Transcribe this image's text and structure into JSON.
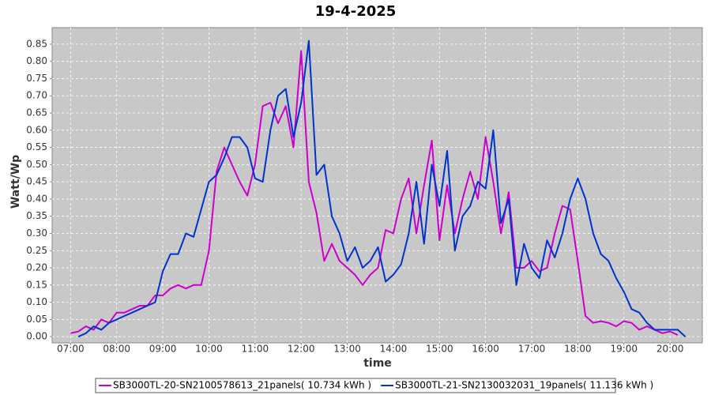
{
  "chart_data": {
    "type": "line",
    "title": "19-4-2025",
    "x_label": "time",
    "y_label": "Watt/Wp",
    "x": [
      420,
      430,
      440,
      450,
      460,
      470,
      480,
      490,
      500,
      510,
      520,
      530,
      540,
      550,
      560,
      570,
      580,
      590,
      600,
      610,
      620,
      630,
      640,
      650,
      660,
      670,
      680,
      690,
      700,
      710,
      720,
      730,
      740,
      750,
      760,
      770,
      780,
      790,
      800,
      810,
      820,
      830,
      840,
      850,
      860,
      870,
      880,
      890,
      900,
      910,
      920,
      930,
      940,
      950,
      960,
      970,
      980,
      990,
      1000,
      1010,
      1020,
      1030,
      1040,
      1050,
      1060,
      1070,
      1080,
      1090,
      1100,
      1110,
      1120,
      1130,
      1140,
      1150,
      1160,
      1170,
      1180,
      1190,
      1200,
      1210,
      1220
    ],
    "xlim": [
      396,
      1242
    ],
    "xticks": [
      {
        "value": 420,
        "label": "07:00"
      },
      {
        "value": 480,
        "label": "08:00"
      },
      {
        "value": 540,
        "label": "09:00"
      },
      {
        "value": 600,
        "label": "10:00"
      },
      {
        "value": 660,
        "label": "11:00"
      },
      {
        "value": 720,
        "label": "12:00"
      },
      {
        "value": 780,
        "label": "13:00"
      },
      {
        "value": 840,
        "label": "14:00"
      },
      {
        "value": 900,
        "label": "15:00"
      },
      {
        "value": 960,
        "label": "16:00"
      },
      {
        "value": 1020,
        "label": "17:00"
      },
      {
        "value": 1080,
        "label": "18:00"
      },
      {
        "value": 1140,
        "label": "19:00"
      },
      {
        "value": 1200,
        "label": "20:00"
      }
    ],
    "ylim": [
      -0.018,
      0.898
    ],
    "yticks": [
      {
        "value": 0,
        "label": "0.00"
      },
      {
        "value": 0.05,
        "label": "0.05"
      },
      {
        "value": 0.1,
        "label": "0.10"
      },
      {
        "value": 0.15,
        "label": "0.15"
      },
      {
        "value": 0.2,
        "label": "0.20"
      },
      {
        "value": 0.25,
        "label": "0.25"
      },
      {
        "value": 0.3,
        "label": "0.30"
      },
      {
        "value": 0.35,
        "label": "0.35"
      },
      {
        "value": 0.4,
        "label": "0.40"
      },
      {
        "value": 0.45,
        "label": "0.45"
      },
      {
        "value": 0.5,
        "label": "0.50"
      },
      {
        "value": 0.55,
        "label": "0.55"
      },
      {
        "value": 0.6,
        "label": "0.60"
      },
      {
        "value": 0.65,
        "label": "0.65"
      },
      {
        "value": 0.7,
        "label": "0.70"
      },
      {
        "value": 0.75,
        "label": "0.75"
      },
      {
        "value": 0.8,
        "label": "0.80"
      },
      {
        "value": 0.85,
        "label": "0.85"
      }
    ],
    "grid": true,
    "legend": "bottom",
    "series": [
      {
        "name": "SB3000TL-20-SN2100578613_21panels( 10.734 kWh )",
        "color": "#cc00cc",
        "values": [
          0.01,
          0.015,
          0.03,
          0.02,
          0.05,
          0.04,
          0.07,
          0.07,
          0.08,
          0.09,
          0.09,
          0.12,
          0.12,
          0.14,
          0.15,
          0.14,
          0.15,
          0.15,
          0.25,
          0.48,
          0.55,
          0.5,
          0.45,
          0.41,
          0.5,
          0.67,
          0.68,
          0.62,
          0.67,
          0.55,
          0.83,
          0.45,
          0.36,
          0.22,
          0.27,
          0.22,
          0.2,
          0.18,
          0.15,
          0.18,
          0.2,
          0.31,
          0.3,
          0.4,
          0.46,
          0.3,
          0.44,
          0.57,
          0.28,
          0.44,
          0.3,
          0.4,
          0.48,
          0.4,
          0.58,
          0.45,
          0.3,
          0.42,
          0.2,
          0.2,
          0.22,
          0.19,
          0.2,
          0.3,
          0.38,
          0.37,
          0.22,
          0.06,
          0.04,
          0.045,
          0.04,
          0.03,
          0.045,
          0.04,
          0.02,
          0.03,
          0.02,
          0.01,
          0.015,
          0.005,
          null
        ]
      },
      {
        "name": "SB3000TL-21-SN2130032031_19panels( 11.136 kWh )",
        "color": "#0033cc",
        "values": [
          null,
          0,
          0.01,
          0.03,
          0.02,
          0.04,
          0.05,
          0.06,
          0.07,
          0.08,
          0.09,
          0.1,
          0.19,
          0.24,
          0.24,
          0.3,
          0.29,
          0.37,
          0.45,
          0.47,
          0.52,
          0.58,
          0.58,
          0.55,
          0.46,
          0.45,
          0.6,
          0.7,
          0.72,
          0.58,
          0.68,
          0.86,
          0.47,
          0.5,
          0.35,
          0.3,
          0.22,
          0.26,
          0.2,
          0.22,
          0.26,
          0.16,
          0.18,
          0.21,
          0.3,
          0.45,
          0.27,
          0.5,
          0.38,
          0.54,
          0.25,
          0.35,
          0.38,
          0.45,
          0.43,
          0.6,
          0.33,
          0.4,
          0.15,
          0.27,
          0.2,
          0.17,
          0.28,
          0.23,
          0.3,
          0.4,
          0.46,
          0.4,
          0.3,
          0.24,
          0.22,
          0.17,
          0.13,
          0.08,
          0.07,
          0.04,
          0.02,
          0.02,
          0.02,
          0.02,
          0
        ]
      }
    ]
  }
}
